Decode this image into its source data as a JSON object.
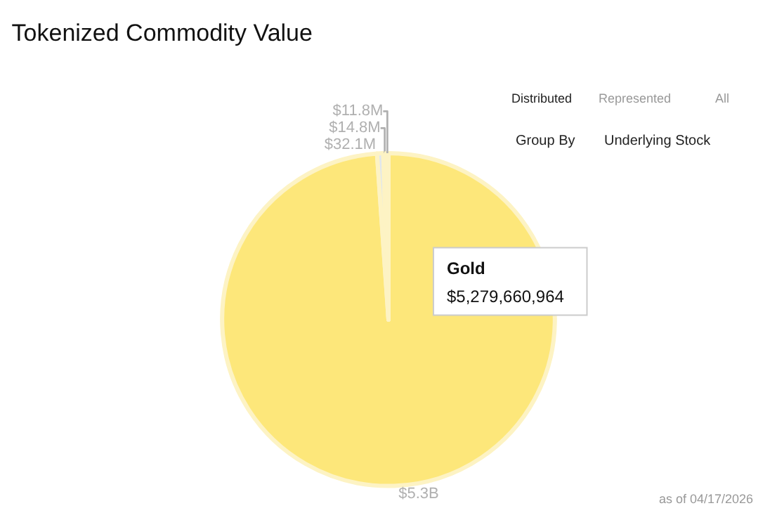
{
  "chart_data": {
    "type": "pie",
    "title": "Tokenized Commodity Value",
    "categories": [
      "Gold",
      null,
      null,
      null
    ],
    "values": [
      5279660964,
      32100000,
      14800000,
      11800000
    ],
    "value_labels": [
      "$5.3B",
      "$32.1M",
      "$14.8M",
      "$11.8M"
    ],
    "colors": [
      "#fde77a",
      "#dfe6ee",
      "#f6eec4",
      "#ececec"
    ],
    "annotations": [
      "Distributed",
      "Represented",
      "All",
      "Group By",
      "Underlying Stock",
      "$5,279,660,964",
      "as of 04/17/2026"
    ],
    "legend": false
  }
}
